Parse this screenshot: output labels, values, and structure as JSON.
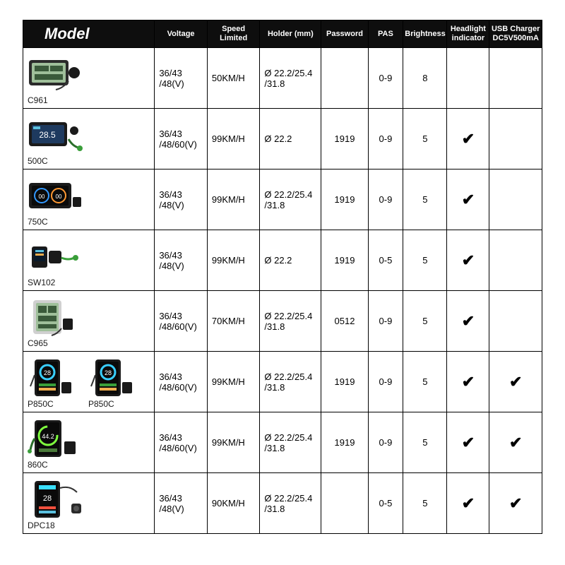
{
  "colors": {
    "header_bg": "#0e0e0e",
    "header_text": "#ffffff",
    "border": "#000000",
    "text": "#1a1a1a",
    "check": "#000000"
  },
  "columns": {
    "model": "Model",
    "voltage": "Voltage",
    "speed": "Speed Limited",
    "holder": "Holder (mm)",
    "password": "Password",
    "pas": "PAS",
    "brightness": "Brightness",
    "headlight": "Headlight indicator",
    "usb": "USB Charger DC5V500mA"
  },
  "rows": [
    {
      "models": [
        "C961"
      ],
      "voltage": "36/43\n/48(V)",
      "speed": "50KM/H",
      "holder": "Ø 22.2/25.4\n/31.8",
      "password": "",
      "pas": "0-9",
      "brightness": "8",
      "headlight": false,
      "usb": false,
      "thumb_type": "lcd_wide"
    },
    {
      "models": [
        "500C"
      ],
      "voltage": "36/43\n/48/60(V)",
      "speed": "99KM/H",
      "holder": "Ø 22.2",
      "password": "1919",
      "pas": "0-9",
      "brightness": "5",
      "headlight": true,
      "usb": false,
      "thumb_type": "color_wide"
    },
    {
      "models": [
        "750C"
      ],
      "voltage": "36/43\n/48(V)",
      "speed": "99KM/H",
      "holder": "Ø 22.2/25.4\n/31.8",
      "password": "1919",
      "pas": "0-9",
      "brightness": "5",
      "headlight": true,
      "usb": false,
      "thumb_type": "color_dual"
    },
    {
      "models": [
        "SW102"
      ],
      "voltage": "36/43\n/48(V)",
      "speed": "99KM/H",
      "holder": "Ø 22.2",
      "password": "1919",
      "pas": "0-5",
      "brightness": "5",
      "headlight": true,
      "usb": false,
      "thumb_type": "mini"
    },
    {
      "models": [
        "C965"
      ],
      "voltage": "36/43\n/48/60(V)",
      "speed": "70KM/H",
      "holder": "Ø 22.2/25.4\n/31.8",
      "password": "0512",
      "pas": "0-9",
      "brightness": "5",
      "headlight": true,
      "usb": false,
      "thumb_type": "lcd_tall"
    },
    {
      "models": [
        "P850C",
        "P850C"
      ],
      "voltage": "36/43\n/48/60(V)",
      "speed": "99KM/H",
      "holder": "Ø 22.2/25.4\n/31.8",
      "password": "1919",
      "pas": "0-9",
      "brightness": "5",
      "headlight": true,
      "usb": true,
      "thumb_type": "color_tall"
    },
    {
      "models": [
        "860C"
      ],
      "voltage": "36/43\n/48/60(V)",
      "speed": "99KM/H",
      "holder": "Ø 22.2/25.4\n/31.8",
      "password": "1919",
      "pas": "0-9",
      "brightness": "5",
      "headlight": true,
      "usb": true,
      "thumb_type": "color_round"
    },
    {
      "models": [
        "DPC18"
      ],
      "voltage": "36/43\n/48(V)",
      "speed": "90KM/H",
      "holder": "Ø 22.2/25.4\n/31.8",
      "password": "",
      "pas": "0-5",
      "brightness": "5",
      "headlight": true,
      "usb": true,
      "thumb_type": "color_tall2"
    }
  ]
}
